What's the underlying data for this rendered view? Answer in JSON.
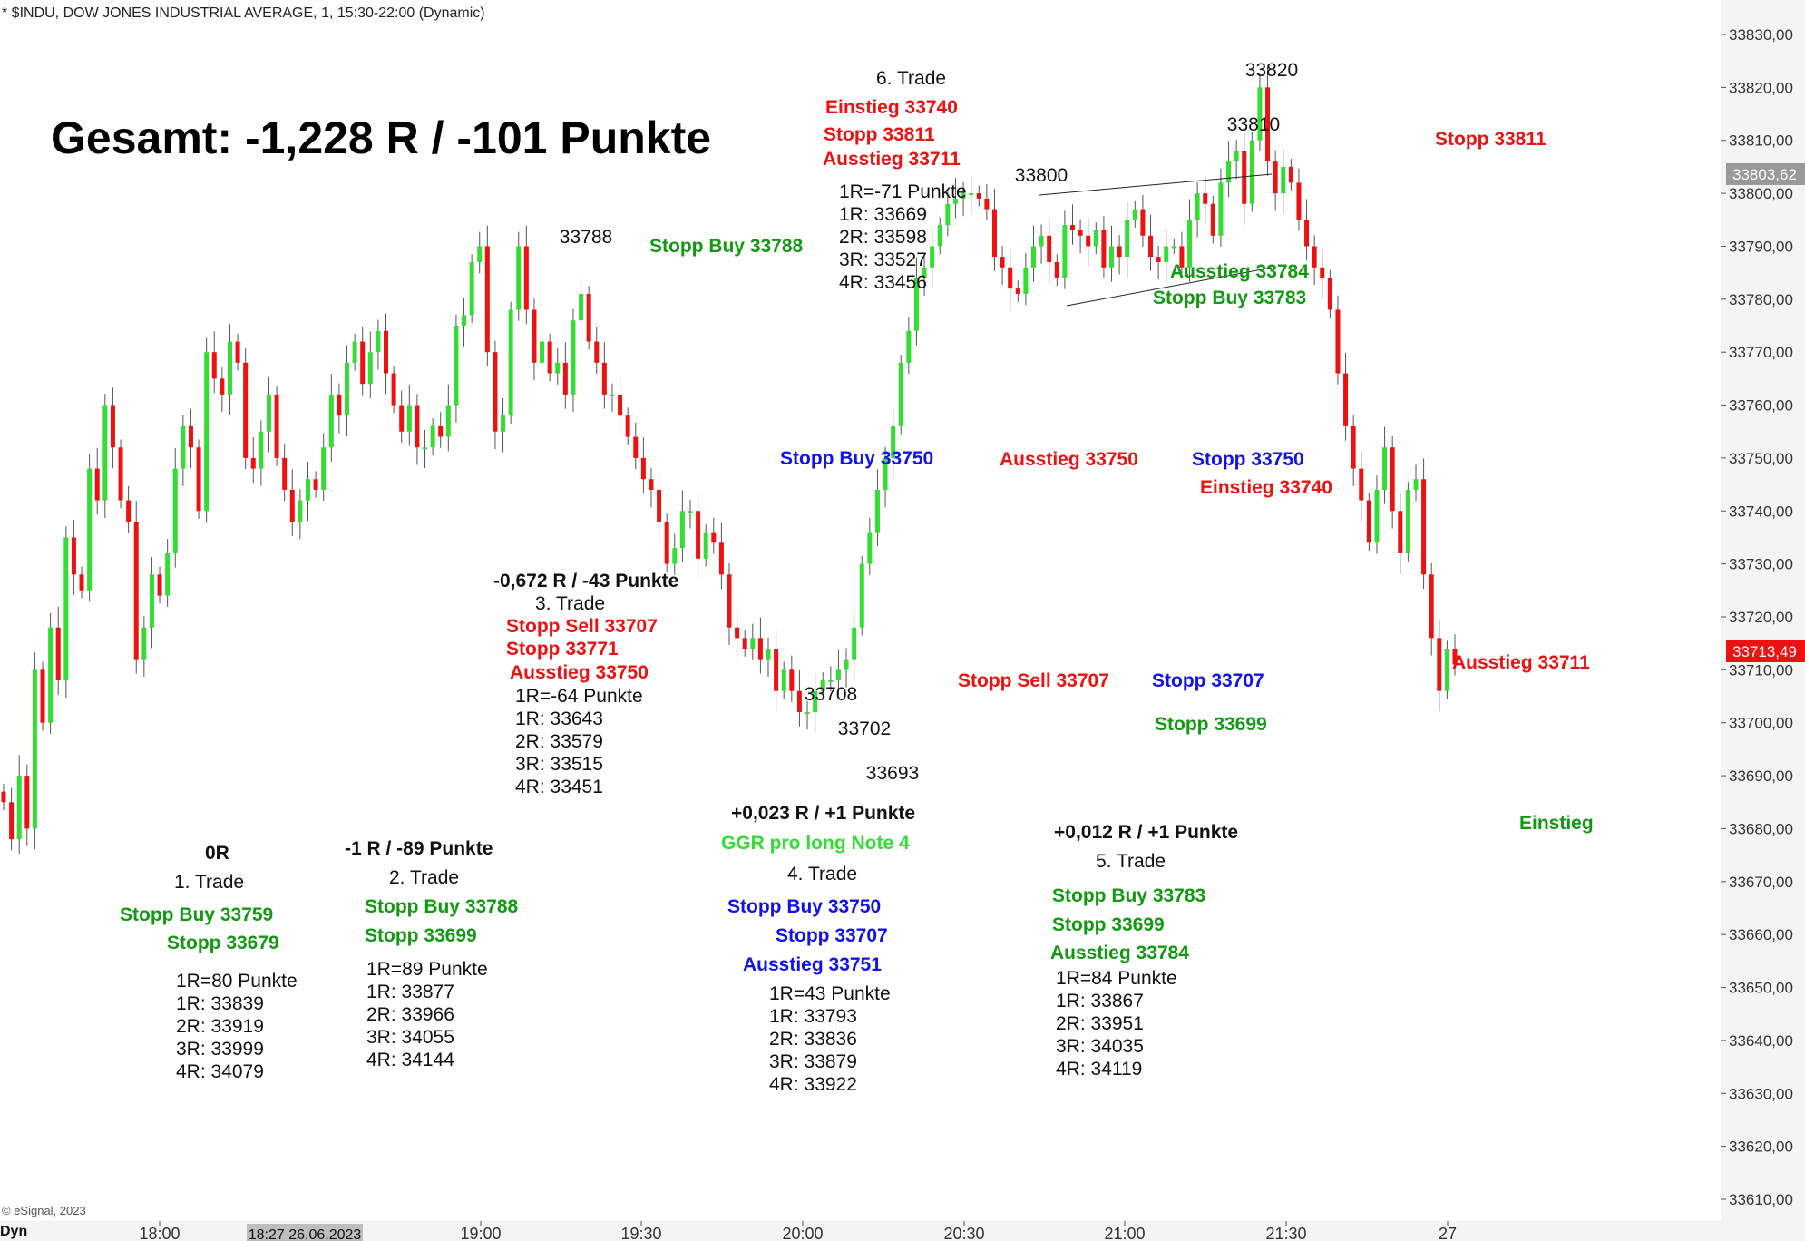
{
  "header": {
    "title": "* $INDU, DOW JONES INDUSTRIAL AVERAGE, 1, 15:30-22:00 (Dynamic)"
  },
  "footer": {
    "copyright": "© eSignal, 2023",
    "mode": "Dyn"
  },
  "chart_data": {
    "type": "candlestick",
    "title": "Gesamt: -1,228 R / -101 Punkte",
    "ylim": [
      33605,
      33834
    ],
    "y_ticks": [
      "33830,00",
      "33820,00",
      "33810,00",
      "33800,00",
      "33790,00",
      "33780,00",
      "33770,00",
      "33760,00",
      "33750,00",
      "33740,00",
      "33730,00",
      "33720,00",
      "33710,00",
      "33700,00",
      "33690,00",
      "33680,00",
      "33670,00",
      "33660,00",
      "33650,00",
      "33640,00",
      "33630,00",
      "33620,00",
      "33610,00"
    ],
    "x_ticks": [
      "18:00",
      "18:27 26.06.2023",
      "19:00",
      "19:30",
      "20:00",
      "20:30",
      "21:00",
      "21:30",
      "27"
    ],
    "price_tags": [
      {
        "label": "33803,62",
        "value": 33803.62,
        "color": "#999999"
      },
      {
        "label": "33713,49",
        "value": 33713.49,
        "color": "#ee1111"
      }
    ],
    "colors": {
      "up": "#33dd33",
      "down": "#ee1111",
      "wick": "#555555"
    },
    "price_path": [
      33685,
      33678,
      33690,
      33680,
      33710,
      33700,
      33718,
      33708,
      33735,
      33728,
      33725,
      33748,
      33742,
      33760,
      33752,
      33742,
      33738,
      33712,
      33718,
      33728,
      33724,
      33732,
      33748,
      33756,
      33752,
      33740,
      33770,
      33765,
      33762,
      33772,
      33768,
      33750,
      33748,
      33755,
      33762,
      33750,
      33744,
      33738,
      33742,
      33746,
      33744,
      33752,
      33762,
      33758,
      33768,
      33772,
      33764,
      33770,
      33774,
      33766,
      33760,
      33755,
      33760,
      33752,
      33752,
      33756,
      33754,
      33760,
      33775,
      33777,
      33787,
      33790,
      33770,
      33755,
      33758,
      33778,
      33790,
      33778,
      33768,
      33772,
      33766,
      33768,
      33762,
      33776,
      33781,
      33772,
      33768,
      33762,
      33762,
      33758,
      33754,
      33750,
      33746,
      33744,
      33738,
      33730,
      33733,
      33740,
      33740,
      33731,
      33736,
      33734,
      33728,
      33718,
      33716,
      33714,
      33716,
      33712,
      33714,
      33706,
      33710,
      33706,
      33702,
      33702,
      33706,
      33708,
      33708,
      33710,
      33712,
      33718,
      33730,
      33736,
      33744,
      33750,
      33756,
      33768,
      33774,
      33784,
      33786,
      33790,
      33794,
      33798,
      33799,
      33800,
      33800,
      33799,
      33797,
      33788,
      33786,
      33782,
      33781,
      33786,
      33790,
      33792,
      33787,
      33784,
      33794,
      33793,
      33792,
      33790,
      33793,
      33786,
      33790,
      33788,
      33795,
      33797,
      33792,
      33788,
      33787,
      33790,
      33790,
      33786,
      33795,
      33800,
      33798,
      33792,
      33802,
      33806,
      33808,
      33798,
      33810,
      33820,
      33806,
      33800,
      33805,
      33802,
      33795,
      33790,
      33786,
      33784,
      33778,
      33766,
      33756,
      33748,
      33742,
      33734,
      33744,
      33752,
      33740,
      33732,
      33744,
      33746,
      33728,
      33716,
      33706,
      33714,
      33711
    ],
    "points": [
      {
        "label": "33788",
        "value": 33788
      },
      {
        "label": "33800",
        "value": 33800
      },
      {
        "label": "33810",
        "value": 33810
      },
      {
        "label": "33820",
        "value": 33820
      },
      {
        "label": "33708",
        "value": 33708
      },
      {
        "label": "33702",
        "value": 33702
      },
      {
        "label": "33693",
        "value": 33693
      }
    ]
  },
  "annotations": {
    "total": "Gesamt: -1,228 R / -101 Punkte",
    "trade1": {
      "result": "0R",
      "name": "1. Trade",
      "entry": "Stopp Buy 33759",
      "stop": "Stopp 33679",
      "levels": [
        "1R=80 Punkte",
        "1R: 33839",
        "2R: 33919",
        "3R: 33999",
        "4R: 34079"
      ]
    },
    "trade2": {
      "result": "-1 R / -89 Punkte",
      "name": "2. Trade",
      "entry": "Stopp Buy 33788",
      "stop": "Stopp 33699",
      "levels": [
        "1R=89 Punkte",
        "1R: 33877",
        "2R: 33966",
        "3R: 34055",
        "4R: 34144"
      ]
    },
    "trade3": {
      "result": "-0,672 R / -43 Punkte",
      "name": "3. Trade",
      "entry": "Stopp Sell 33707",
      "stop": "Stopp 33771",
      "exit": "Ausstieg 33750",
      "levels": [
        "1R=-64 Punkte",
        "1R: 33643",
        "2R: 33579",
        "3R: 33515",
        "4R: 33451"
      ]
    },
    "trade4": {
      "result": "+0,023 R / +1 Punkte",
      "note": "GGR pro long Note 4",
      "name": "4. Trade",
      "entry": "Stopp Buy 33750",
      "stop": "Stopp 33707",
      "exit": "Ausstieg 33751",
      "levels": [
        "1R=43 Punkte",
        "1R: 33793",
        "2R: 33836",
        "3R: 33879",
        "4R: 33922"
      ]
    },
    "trade5": {
      "result": "+0,012 R / +1 Punkte",
      "name": "5. Trade",
      "entry": "Stopp Buy 33783",
      "stop": "Stopp 33699",
      "exit": "Ausstieg 33784",
      "levels": [
        "1R=84 Punkte",
        "1R: 33867",
        "2R: 33951",
        "3R: 34035",
        "4R: 34119"
      ]
    },
    "trade6": {
      "name": "6. Trade",
      "entry": "Einstieg 33740",
      "stop": "Stopp 33811",
      "exit": "Ausstieg 33711",
      "levels": [
        "1R=-71 Punkte",
        "1R: 33669",
        "2R: 33598",
        "3R: 33527",
        "4R: 33456"
      ]
    },
    "onchart": {
      "stopp_buy_33788": "Stopp Buy 33788",
      "stopp_buy_33750": "Stopp Buy 33750",
      "ausstieg_33750": "Ausstieg 33750",
      "stopp_33750": "Stopp 33750",
      "einstieg_33740": "Einstieg 33740",
      "ausstieg_33784": "Ausstieg 33784",
      "stopp_buy_33783": "Stopp Buy 33783",
      "stopp_sell_33707": "Stopp Sell 33707",
      "stopp_33707": "Stopp 33707",
      "stopp_33699": "Stopp 33699",
      "stopp_33811": "Stopp 33811",
      "ausstieg_33711": "Ausstieg 33711",
      "einstieg": "Einstieg"
    }
  }
}
